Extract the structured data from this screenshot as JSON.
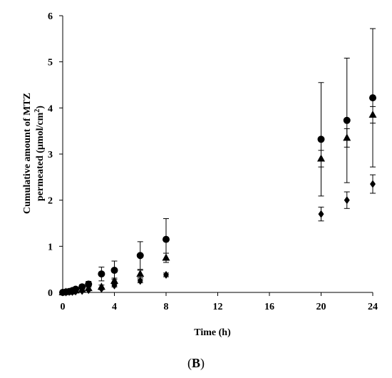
{
  "chart_data": {
    "type": "scatter",
    "panel_label": {
      "open": "(",
      "letter": "B",
      "close": ")"
    },
    "xlabel": "Time (h)",
    "ylabel_line1": "Cumulative amount of MTZ",
    "ylabel_line2_main": "permeated (µmol/cm",
    "ylabel_line2_sup": "2",
    "ylabel_line2_end": ")",
    "xlim": [
      0,
      24
    ],
    "ylim": [
      0,
      6
    ],
    "x_ticks": [
      0,
      4,
      8,
      12,
      16,
      20,
      24
    ],
    "y_ticks": [
      0,
      1,
      2,
      3,
      4,
      5,
      6
    ],
    "x_tick_labels": [
      "0",
      "4",
      "8",
      "12",
      "16",
      "20",
      "24"
    ],
    "y_tick_labels": [
      "0",
      "1",
      "2",
      "3",
      "4",
      "5",
      "6"
    ],
    "grid": false,
    "series": [
      {
        "marker": "circle",
        "x": [
          0,
          0.25,
          0.5,
          0.75,
          1,
          1.5,
          2,
          3,
          4,
          6,
          8,
          20,
          22,
          24
        ],
        "y": [
          0,
          0.01,
          0.02,
          0.04,
          0.07,
          0.12,
          0.18,
          0.4,
          0.48,
          0.8,
          1.15,
          3.32,
          3.73,
          4.22
        ],
        "err": [
          0,
          0.01,
          0.01,
          0.02,
          0.03,
          0.05,
          0.06,
          0.15,
          0.2,
          0.3,
          0.45,
          1.23,
          1.35,
          1.5
        ]
      },
      {
        "marker": "triangle",
        "x": [
          0,
          0.25,
          0.5,
          0.75,
          1,
          1.5,
          2,
          3,
          4,
          6,
          8,
          20,
          22,
          24
        ],
        "y": [
          0,
          0.01,
          0.01,
          0.02,
          0.04,
          0.06,
          0.09,
          0.12,
          0.25,
          0.4,
          0.75,
          2.9,
          3.35,
          3.85
        ],
        "err": [
          0,
          0,
          0,
          0.01,
          0.01,
          0.02,
          0.03,
          0.04,
          0.06,
          0.08,
          0.1,
          0.18,
          0.2,
          0.18
        ]
      },
      {
        "marker": "diamond",
        "x": [
          0,
          0.25,
          0.5,
          0.75,
          1,
          1.5,
          2,
          3,
          4,
          6,
          8,
          20,
          22,
          24
        ],
        "y": [
          0,
          0,
          0.01,
          0.01,
          0.02,
          0.03,
          0.05,
          0.08,
          0.15,
          0.25,
          0.38,
          1.7,
          2.0,
          2.35
        ],
        "err": [
          0,
          0,
          0,
          0,
          0,
          0.01,
          0.01,
          0.02,
          0.03,
          0.04,
          0.04,
          0.15,
          0.18,
          0.2
        ]
      }
    ]
  }
}
